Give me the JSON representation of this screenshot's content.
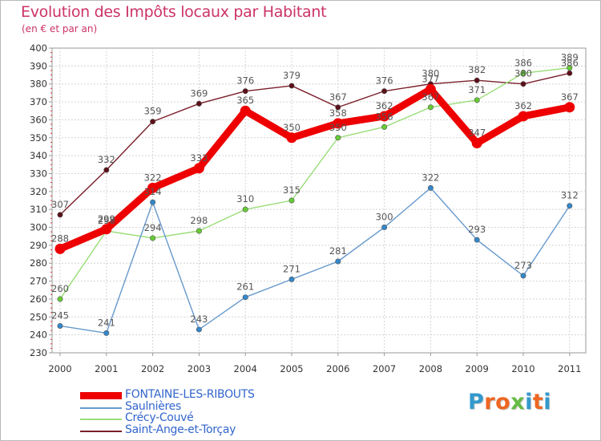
{
  "title": "Evolution des Impôts locaux par Habitant",
  "subtitle": "(en € et par an)",
  "logo": {
    "text": "Proxiti",
    "letter_colors": [
      "#3399cc",
      "#ee6622",
      "#ee6622",
      "#66bb44",
      "#3399cc",
      "#ee6622",
      "#3399cc"
    ]
  },
  "chart_data": {
    "type": "line",
    "title": "Evolution des Impôts locaux par Habitant",
    "subtitle": "(en € et par an)",
    "xlabel": "",
    "ylabel": "",
    "categories": [
      "2000",
      "2001",
      "2002",
      "2003",
      "2004",
      "2005",
      "2006",
      "2007",
      "2008",
      "2009",
      "2010",
      "2011"
    ],
    "y_ticks": [
      "230",
      "240",
      "250",
      "260",
      "270",
      "280",
      "290",
      "300",
      "310",
      "320",
      "330",
      "340",
      "350",
      "360",
      "370",
      "380",
      "390",
      "400"
    ],
    "ylim": [
      230,
      400
    ],
    "grid": true,
    "legend_position": "bottom-left",
    "series": [
      {
        "name": "Saint-Ange-et-Torçay",
        "color": "#7a1f2b",
        "marker_color": "#5c0f18",
        "values": [
          307,
          332,
          359,
          369,
          376,
          379,
          367,
          376,
          380,
          382,
          380,
          386
        ],
        "labels": [
          "307",
          "332",
          "359",
          "369",
          "376",
          "379",
          "367",
          "376",
          "380",
          "382",
          "380",
          "386"
        ]
      },
      {
        "name": "Crécy-Couvé",
        "color": "#99dd77",
        "marker_color": "#66cc33",
        "values": [
          260,
          298,
          294,
          298,
          310,
          315,
          350,
          356,
          367,
          371,
          386,
          389
        ],
        "labels": [
          "260",
          "298",
          "294",
          "298",
          "310",
          "315",
          "350",
          "356",
          "367",
          "371",
          "386",
          "389"
        ]
      },
      {
        "name": "Saulnières",
        "color": "#6699cc",
        "marker_color": "#3388cc",
        "values": [
          245,
          241,
          314,
          243,
          261,
          271,
          281,
          300,
          322,
          293,
          273,
          312
        ],
        "labels": [
          "245",
          "241",
          "314",
          "243",
          "261",
          "271",
          "281",
          "300",
          "322",
          "293",
          "273",
          "312"
        ]
      },
      {
        "name": "FONTAINE-LES-RIBOUTS",
        "color": "#ee0000",
        "marker_color": "#ee0000",
        "thick": true,
        "values": [
          288,
          299,
          322,
          333,
          365,
          350,
          358,
          362,
          377,
          347,
          362,
          367
        ],
        "labels": [
          "288",
          "299",
          "322",
          "333",
          "365",
          "350",
          "358",
          "362",
          "377",
          "347",
          "362",
          "367"
        ]
      }
    ],
    "legend_order": [
      "FONTAINE-LES-RIBOUTS",
      "Saulnières",
      "Crécy-Couvé",
      "Saint-Ange-et-Torçay"
    ]
  }
}
